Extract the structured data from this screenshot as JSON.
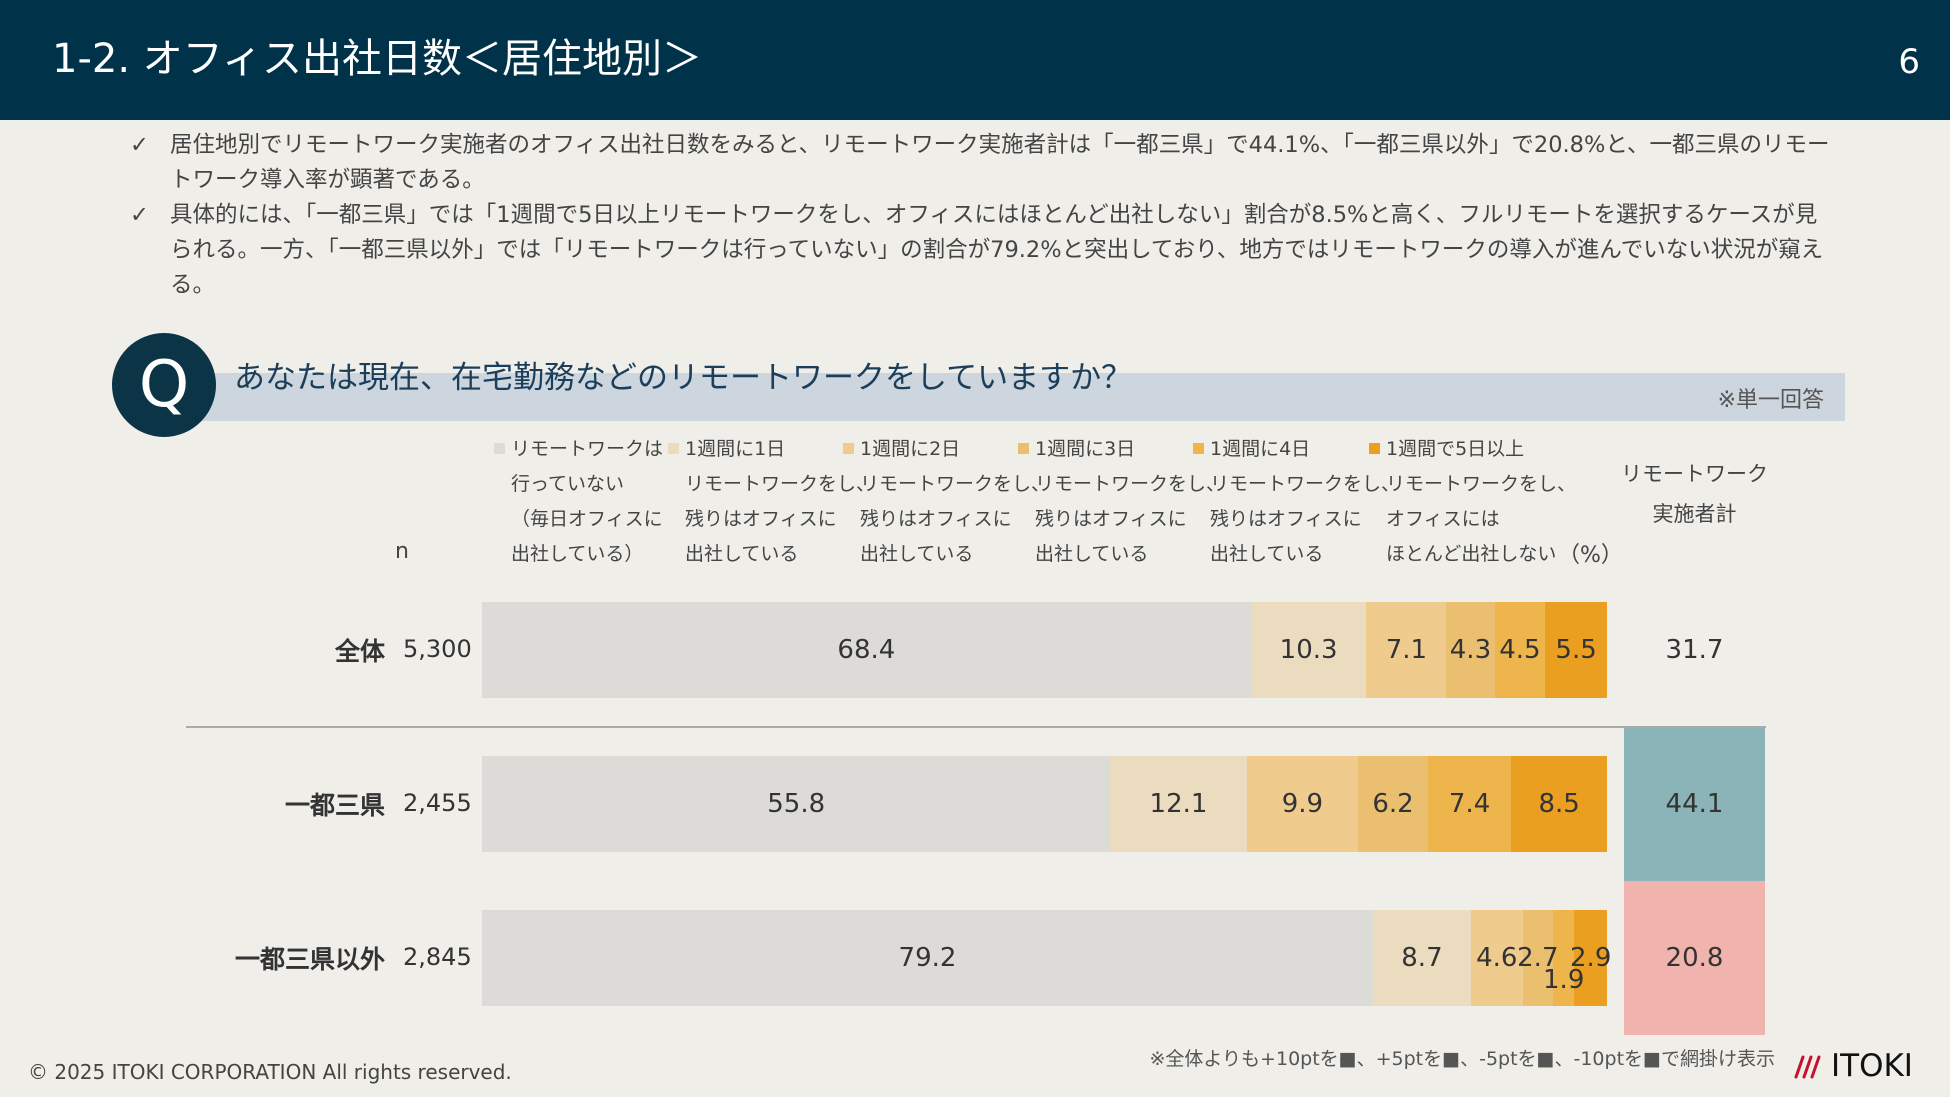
{
  "header": {
    "title": "1-2. オフィス出社日数＜居住地別＞",
    "page_number": "6"
  },
  "bullets": [
    "居住地別でリモートワーク実施者のオフィス出社日数をみると、リモートワーク実施者計は「一都三県」で44.1%、「一都三県以外」で20.8%と、一都三県のリモートワーク導入率が顕著である。",
    "具体的には、「一都三県」では「1週間で5日以上リモートワークをし、オフィスにはほとんど出社しない」割合が8.5%と高く、フルリモートを選択するケースが見られる。一方、「一都三県以外」では「リモートワークは行っていない」の割合が79.2%と突出しており、地方ではリモートワークの導入が進んでいない状況が窺える。"
  ],
  "bullet_mark": "✓",
  "question": {
    "mark": "Q",
    "text": "あなたは現在、在宅勤務などのリモートワークをしていますか？",
    "note": "※単一回答"
  },
  "table_head": {
    "n_label": "n",
    "unit": "（%）",
    "remote_total_label": [
      "リモートワーク",
      "実施者計"
    ]
  },
  "chart_data": {
    "type": "bar",
    "stacked": true,
    "orientation": "horizontal",
    "categories": [
      "全体",
      "一都三県",
      "一都三県以外"
    ],
    "n": [
      "5,300",
      "2,455",
      "2,845"
    ],
    "series": [
      {
        "name": "リモートワークは行っていない（毎日オフィスに出社している）",
        "legend_lines": [
          "リモートワークは",
          "行っていない",
          "（毎日オフィスに",
          "出社している）"
        ],
        "color": "#dcdbd8",
        "values": [
          68.4,
          55.8,
          79.2
        ]
      },
      {
        "name": "1週間に1日リモートワークをし、残りはオフィスに出社している",
        "legend_lines": [
          "1週間に1日",
          "リモートワークをし、",
          "残りはオフィスに",
          "出社している"
        ],
        "color": "#ecdcbf",
        "values": [
          10.3,
          12.1,
          8.7
        ]
      },
      {
        "name": "1週間に2日リモートワークをし、残りはオフィスに出社している",
        "legend_lines": [
          "1週間に2日",
          "リモートワークをし、",
          "残りはオフィスに",
          "出社している"
        ],
        "color": "#f0cb8e",
        "values": [
          7.1,
          9.9,
          4.6
        ]
      },
      {
        "name": "1週間に3日リモートワークをし、残りはオフィスに出社している",
        "legend_lines": [
          "1週間に3日",
          "リモートワークをし、",
          "残りはオフィスに",
          "出社している"
        ],
        "color": "#ebbf70",
        "values": [
          4.3,
          6.2,
          2.7
        ]
      },
      {
        "name": "1週間に4日リモートワークをし、残りはオフィスに出社している",
        "legend_lines": [
          "1週間に4日",
          "リモートワークをし、",
          "残りはオフィスに",
          "出社している"
        ],
        "color": "#edb54c",
        "values": [
          4.5,
          7.4,
          1.9
        ]
      },
      {
        "name": "1週間で5日以上リモートワークをし、オフィスにはほとんど出社しない",
        "legend_lines": [
          "1週間で5日以上",
          "リモートワークをし、",
          "オフィスには",
          "ほとんど出社しない"
        ],
        "color": "#ea9f20",
        "values": [
          5.5,
          8.5,
          2.9
        ]
      }
    ],
    "remote_total": [
      31.7,
      44.1,
      20.8
    ],
    "remote_total_colors": [
      "#efeee9",
      "#8ab4b8",
      "#f1b3ae"
    ],
    "unit": "%"
  },
  "footnote": "※全体よりも+10ptを■、+5ptを■、-5ptを■、-10ptを■で網掛け表示",
  "footer": {
    "copyright": "© 2025 ITOKI CORPORATION All rights reserved.",
    "logo_text": "ITOKI",
    "logo_color": "#c8102e"
  }
}
